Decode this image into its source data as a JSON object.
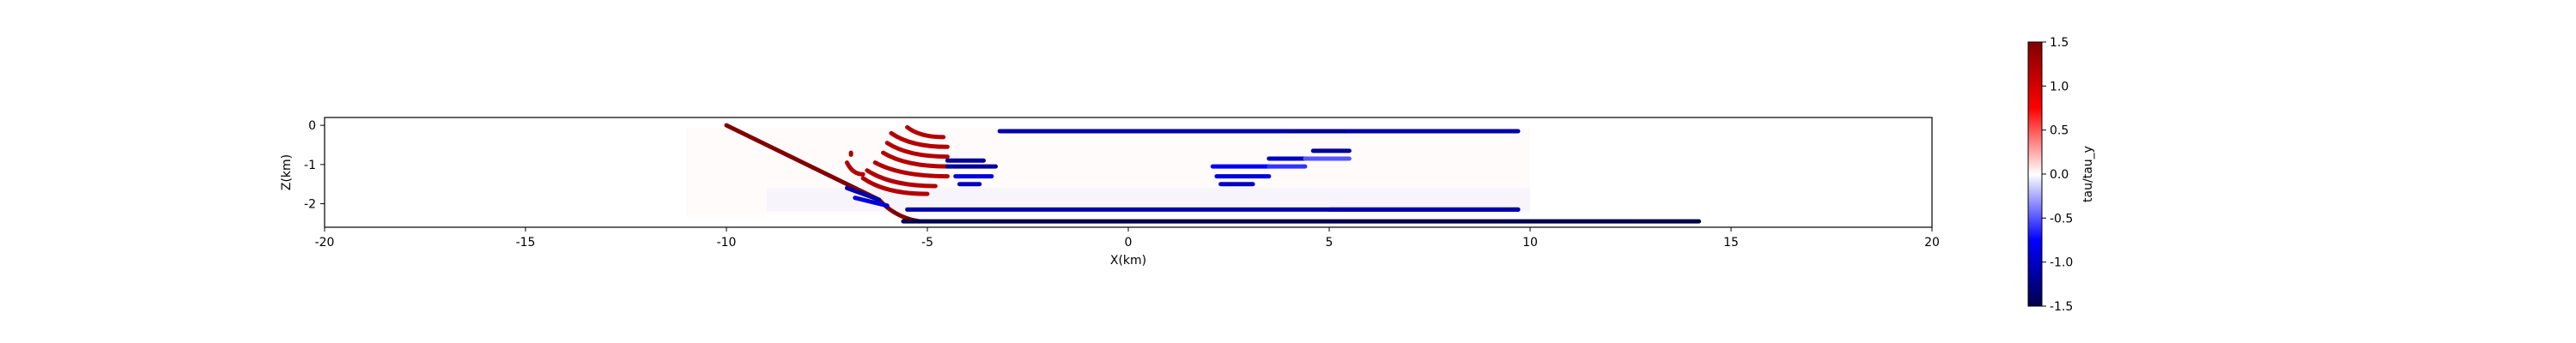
{
  "chart_data": {
    "type": "scatter",
    "xlabel": "X(km)",
    "ylabel": "Z(km)",
    "xlim": [
      -20,
      20
    ],
    "ylim": [
      -2.6,
      0.2
    ],
    "xticks": [
      "-20",
      "-15",
      "-10",
      "-5",
      "0",
      "5",
      "10",
      "15",
      "20"
    ],
    "xtick_values": [
      -20,
      -15,
      -10,
      -5,
      0,
      5,
      10,
      15,
      20
    ],
    "yticks": [
      "0",
      "-1",
      "-2"
    ],
    "ytick_values": [
      0,
      -1,
      -2
    ],
    "colorbar": {
      "label": "tau/tau_y",
      "range": [
        -1.5,
        1.5
      ],
      "ticks": [
        "1.5",
        "1.0",
        "0.5",
        "0.0",
        "-0.5",
        "-1.0",
        "-1.5"
      ],
      "tick_values": [
        1.5,
        1.0,
        0.5,
        0.0,
        -0.5,
        -1.0,
        -1.5
      ],
      "colormap": [
        "#00004c",
        "#0000ff",
        "#ffffff",
        "#ff0000",
        "#800000"
      ]
    },
    "segments": [
      {
        "x": [
          -10,
          -5.6
        ],
        "y": [
          0,
          -2.2
        ],
        "value": 1.5,
        "curve": true
      },
      {
        "x": [
          -5.6,
          14.2
        ],
        "y": [
          -2.45,
          -2.45
        ],
        "value": -1.5
      },
      {
        "x": [
          -5.5,
          9.7
        ],
        "y": [
          -2.15,
          -2.15
        ],
        "value": -1.1
      },
      {
        "x": [
          -3.2,
          9.7
        ],
        "y": [
          -0.15,
          -0.15
        ],
        "value": -1.1
      },
      {
        "x": [
          -7.0,
          -6.2
        ],
        "y": [
          -1.6,
          -1.9
        ],
        "value": -1.1
      },
      {
        "x": [
          -6.8,
          -6.0
        ],
        "y": [
          -1.85,
          -2.05
        ],
        "value": -0.9
      },
      {
        "x": [
          -5.5,
          -4.6
        ],
        "y": [
          -0.05,
          -0.3
        ],
        "value": 1.2,
        "arc": true
      },
      {
        "x": [
          -5.9,
          -4.5
        ],
        "y": [
          -0.2,
          -0.55
        ],
        "value": 1.2,
        "arc": true
      },
      {
        "x": [
          -6.0,
          -4.5
        ],
        "y": [
          -0.45,
          -0.8
        ],
        "value": 1.2,
        "arc": true
      },
      {
        "x": [
          -6.1,
          -4.5
        ],
        "y": [
          -0.7,
          -1.05
        ],
        "value": 1.2,
        "arc": true
      },
      {
        "x": [
          -6.3,
          -4.5
        ],
        "y": [
          -0.95,
          -1.3
        ],
        "value": 1.2,
        "arc": true
      },
      {
        "x": [
          -6.5,
          -4.8
        ],
        "y": [
          -1.15,
          -1.55
        ],
        "value": 1.2,
        "arc": true
      },
      {
        "x": [
          -6.6,
          -5.0
        ],
        "y": [
          -1.35,
          -1.75
        ],
        "value": 1.2,
        "arc": true
      },
      {
        "x": [
          -7.0,
          -6.6
        ],
        "y": [
          -0.95,
          -1.25
        ],
        "value": 1.2,
        "arc": true
      },
      {
        "x": [
          -6.9,
          -6.9
        ],
        "y": [
          -0.7,
          -0.75
        ],
        "value": 1.3
      },
      {
        "x": [
          -4.5,
          -3.6
        ],
        "y": [
          -0.9,
          -0.9
        ],
        "value": -1.2
      },
      {
        "x": [
          -4.5,
          -3.3
        ],
        "y": [
          -1.05,
          -1.05
        ],
        "value": -1.2
      },
      {
        "x": [
          -4.3,
          -3.4
        ],
        "y": [
          -1.3,
          -1.3
        ],
        "value": -0.9
      },
      {
        "x": [
          -4.2,
          -3.7
        ],
        "y": [
          -1.5,
          -1.5
        ],
        "value": -1.0
      },
      {
        "x": [
          2.1,
          3.5
        ],
        "y": [
          -1.05,
          -1.05
        ],
        "value": -0.8
      },
      {
        "x": [
          2.2,
          3.5
        ],
        "y": [
          -1.3,
          -1.3
        ],
        "value": -0.9
      },
      {
        "x": [
          2.3,
          3.1
        ],
        "y": [
          -1.5,
          -1.5
        ],
        "value": -1.0
      },
      {
        "x": [
          3.5,
          4.4
        ],
        "y": [
          -0.85,
          -0.85
        ],
        "value": -1.0
      },
      {
        "x": [
          3.5,
          4.4
        ],
        "y": [
          -1.05,
          -1.05
        ],
        "value": -0.6
      },
      {
        "x": [
          4.6,
          5.5
        ],
        "y": [
          -0.65,
          -0.65
        ],
        "value": -1.2
      },
      {
        "x": [
          4.4,
          5.5
        ],
        "y": [
          -0.85,
          -0.85
        ],
        "value": -0.5
      },
      {
        "x": [
          4.0,
          5.4
        ],
        "y": [
          -0.15,
          -0.15
        ],
        "value": -1.2
      },
      {
        "x": [
          5.0,
          9.7
        ],
        "y": [
          -2.15,
          -2.15
        ],
        "value": -1.1
      }
    ],
    "faint_bands": [
      {
        "x": [
          -11,
          10
        ],
        "y": [
          -0.05,
          -2.3
        ],
        "value": 0.15
      },
      {
        "x": [
          -9,
          10
        ],
        "y": [
          -1.6,
          -2.2
        ],
        "value": -0.25
      }
    ]
  }
}
